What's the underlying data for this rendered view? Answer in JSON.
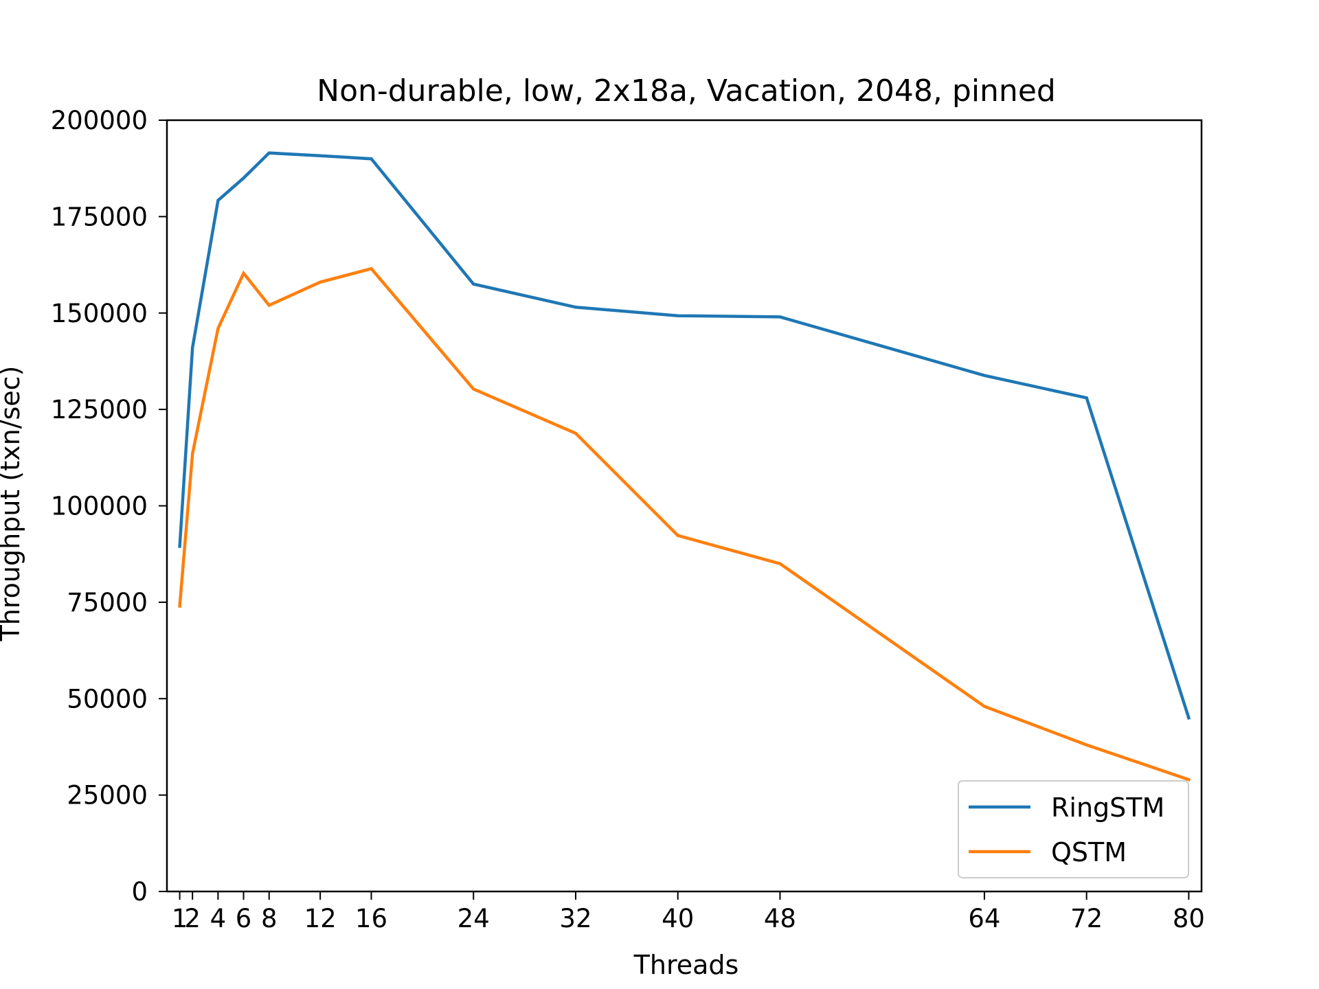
{
  "chart_data": {
    "type": "line",
    "title": "Non-durable, low, 2x18a, Vacation, 2048, pinned",
    "xlabel": "Threads",
    "ylabel": "Throughput (txn/sec)",
    "xlim": [
      0,
      81
    ],
    "ylim": [
      0,
      200000
    ],
    "xticks": [
      1,
      2,
      4,
      6,
      8,
      12,
      16,
      24,
      32,
      40,
      48,
      64,
      72,
      80
    ],
    "xtick_labels": [
      "1",
      "2",
      "4",
      "6",
      "8",
      "12",
      "16",
      "24",
      "32",
      "40",
      "48",
      "64",
      "72",
      "80"
    ],
    "yticks": [
      0,
      25000,
      50000,
      75000,
      100000,
      125000,
      150000,
      175000,
      200000
    ],
    "ytick_labels": [
      "0",
      "25000",
      "50000",
      "75000",
      "100000",
      "125000",
      "150000",
      "175000",
      "200000"
    ],
    "grid": false,
    "legend_position": "lower-right",
    "x": [
      1,
      2,
      4,
      6,
      8,
      12,
      16,
      24,
      32,
      40,
      48,
      64,
      72,
      80
    ],
    "series": [
      {
        "name": "RingSTM",
        "color": "#1f77b4",
        "values": [
          89500,
          141000,
          179200,
          185000,
          191500,
          190800,
          190000,
          157500,
          151500,
          149300,
          149000,
          133800,
          128000,
          45000
        ]
      },
      {
        "name": "QSTM",
        "color": "#ff7f0e",
        "values": [
          74000,
          113500,
          146000,
          160300,
          152000,
          158000,
          161500,
          130300,
          118800,
          92300,
          85000,
          48000,
          38000,
          29000
        ]
      }
    ]
  }
}
